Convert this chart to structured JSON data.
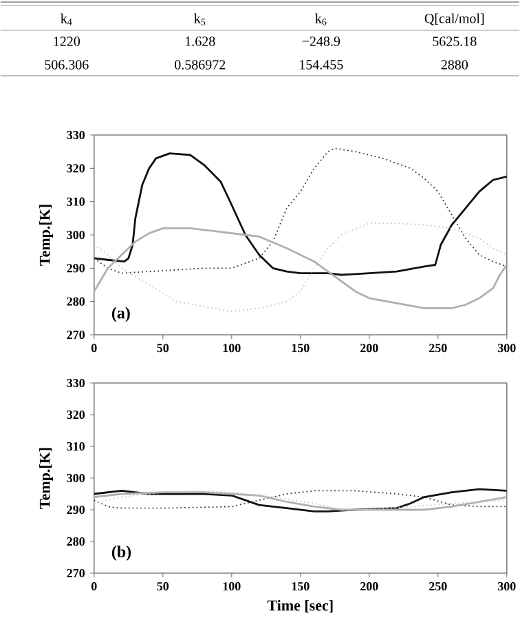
{
  "chart_data": [
    {
      "type": "other",
      "annotations": [
        "k$_{4}$",
        "k$_{5}$",
        "k$_{6}$",
        "Q[cal/mol]",
        "1220",
        "1.628",
        "−248.9",
        "5625.18",
        "506.306",
        "0.586972",
        "154.455",
        "2880"
      ]
    },
    {
      "type": "line",
      "ylabel": "Temp.[K]",
      "annotations": [
        "(a)"
      ],
      "xlim": [
        0,
        300
      ],
      "ylim": [
        270,
        330
      ],
      "xticks": [
        0,
        50,
        100,
        150,
        200,
        250,
        300
      ],
      "yticks": [
        270,
        280,
        290,
        300,
        310,
        320,
        330
      ],
      "grid": false,
      "marker": "none",
      "series": [
        {
          "color": "#111111",
          "line_style": "solid",
          "x": [
            0,
            10,
            22,
            25,
            28,
            30,
            35,
            40,
            45,
            55,
            70,
            80,
            92,
            100,
            110,
            120,
            130,
            140,
            150,
            170,
            180,
            200,
            220,
            240,
            248,
            252,
            260,
            270,
            280,
            290,
            300
          ],
          "values": [
            293,
            292.5,
            292,
            293,
            297,
            305,
            315,
            320,
            323,
            324.5,
            324,
            321,
            316,
            309,
            300,
            294,
            290,
            289,
            288.5,
            288.5,
            288,
            288.5,
            289,
            290.5,
            291,
            297,
            303,
            308,
            313,
            316.5,
            317.5
          ]
        },
        {
          "color": "#333333",
          "line_style": "dotted",
          "x": [
            0,
            10,
            20,
            40,
            60,
            80,
            100,
            120,
            130,
            140,
            150,
            160,
            170,
            175,
            190,
            210,
            230,
            240,
            250,
            260,
            270,
            280,
            290,
            300
          ],
          "values": [
            293,
            290,
            288.5,
            289,
            289.5,
            290,
            290,
            293,
            298,
            308,
            313,
            320,
            325,
            326,
            325,
            323,
            320,
            317,
            313,
            306,
            299,
            294,
            292,
            290.5
          ]
        },
        {
          "color": "#b0b0b0",
          "line_style": "solid",
          "x": [
            0,
            10,
            20,
            30,
            40,
            50,
            70,
            90,
            110,
            120,
            140,
            160,
            170,
            180,
            190,
            200,
            220,
            240,
            260,
            270,
            280,
            290,
            295,
            300
          ],
          "values": [
            283,
            290,
            294,
            298,
            300.5,
            302,
            302,
            301,
            300,
            299.5,
            296,
            292,
            289,
            286,
            283,
            281,
            279.5,
            278,
            278,
            279,
            281,
            284,
            288,
            291
          ]
        },
        {
          "color": "#c8c8c8",
          "line_style": "dotted",
          "x": [
            0,
            10,
            20,
            40,
            60,
            80,
            100,
            120,
            140,
            150,
            160,
            170,
            180,
            200,
            220,
            240,
            260,
            280,
            290,
            300
          ],
          "values": [
            297,
            294,
            290,
            285,
            280,
            278.5,
            277,
            278,
            280,
            283,
            290,
            296,
            300,
            303.5,
            303.5,
            303,
            302,
            299,
            296,
            294
          ]
        }
      ]
    },
    {
      "type": "line",
      "xlabel": "Time [sec]",
      "ylabel": "Temp.[K]",
      "annotations": [
        "(b)"
      ],
      "xlim": [
        0,
        300
      ],
      "ylim": [
        270,
        330
      ],
      "xticks": [
        0,
        50,
        100,
        150,
        200,
        250,
        300
      ],
      "yticks": [
        270,
        280,
        290,
        300,
        310,
        320,
        330
      ],
      "grid": false,
      "marker": "none",
      "series": [
        {
          "color": "#111111",
          "line_style": "solid",
          "x": [
            0,
            20,
            40,
            60,
            80,
            100,
            110,
            120,
            140,
            160,
            170,
            190,
            220,
            230,
            240,
            260,
            280,
            300
          ],
          "values": [
            295,
            296,
            295,
            295,
            295,
            294.5,
            293,
            291.5,
            290.5,
            289.5,
            289.5,
            290,
            290.5,
            292,
            294,
            295.5,
            296.5,
            296
          ]
        },
        {
          "color": "#333333",
          "line_style": "dotted",
          "x": [
            0,
            10,
            20,
            50,
            100,
            120,
            140,
            160,
            190,
            220,
            240,
            260,
            280,
            300
          ],
          "values": [
            293,
            291,
            290.5,
            290.5,
            291,
            293,
            295,
            296,
            296,
            295,
            294,
            291.5,
            291,
            291
          ]
        },
        {
          "color": "#b0b0b0",
          "line_style": "solid",
          "x": [
            0,
            20,
            50,
            80,
            100,
            120,
            140,
            160,
            180,
            220,
            240,
            260,
            280,
            300
          ],
          "values": [
            294,
            295,
            295.5,
            295.5,
            295,
            294.5,
            292.5,
            291,
            290,
            290,
            290,
            291,
            292.5,
            294
          ]
        },
        {
          "color": "#c8c8c8",
          "line_style": "dotted",
          "x": [
            0,
            20,
            50,
            80,
            100,
            130,
            160,
            180,
            200,
            230,
            260,
            300
          ],
          "values": [
            292,
            294,
            295.5,
            296,
            295.5,
            294,
            292,
            290,
            290,
            291,
            292,
            293
          ]
        }
      ]
    }
  ]
}
